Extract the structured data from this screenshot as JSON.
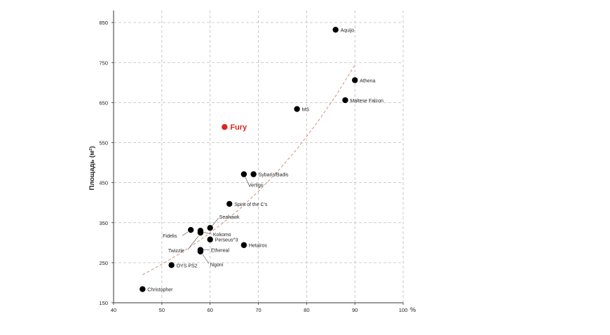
{
  "chart_data": {
    "type": "scatter",
    "title": "",
    "xlabel": "",
    "x_unit": "%",
    "ylabel": "Площадь (м²)",
    "xlim": [
      40,
      100
    ],
    "ylim": [
      150,
      880
    ],
    "x_ticks": [
      40,
      50,
      60,
      70,
      80,
      90,
      100
    ],
    "y_ticks": [
      150,
      250,
      350,
      450,
      550,
      650,
      750,
      850
    ],
    "grid": true,
    "colors": {
      "point": "#000000",
      "highlight": "#d8281e",
      "trend": "#d98c82",
      "grid": "#bcbcbc"
    },
    "points": [
      {
        "name": "Aquijo",
        "x": 86,
        "y": 832,
        "highlight": false
      },
      {
        "name": "Athena",
        "x": 90,
        "y": 706,
        "highlight": false
      },
      {
        "name": "Maltese Falcon",
        "x": 88,
        "y": 656,
        "highlight": false
      },
      {
        "name": "MS",
        "x": 78,
        "y": 634,
        "highlight": false
      },
      {
        "name": "Fury",
        "x": 63,
        "y": 589,
        "highlight": true
      },
      {
        "name": "Sybaris/Badis",
        "x": 69,
        "y": 471,
        "highlight": false
      },
      {
        "name": "Vertigo",
        "x": 67,
        "y": 471,
        "highlight": false
      },
      {
        "name": "Spirit of the C's",
        "x": 64,
        "y": 397,
        "highlight": false
      },
      {
        "name": "Seahawk",
        "x": 60,
        "y": 337,
        "highlight": false
      },
      {
        "name": "Kokomo",
        "x": 58,
        "y": 330,
        "highlight": false
      },
      {
        "name": "Fidelis",
        "x": 56,
        "y": 332,
        "highlight": false
      },
      {
        "name": "Perseus^3",
        "x": 60,
        "y": 308,
        "highlight": false
      },
      {
        "name": "Twizzle",
        "x": 58,
        "y": 325,
        "highlight": false
      },
      {
        "name": "Ethereal",
        "x": 58,
        "y": 282,
        "highlight": false
      },
      {
        "name": "Ngoni",
        "x": 58,
        "y": 278,
        "highlight": false
      },
      {
        "name": "Hetairos",
        "x": 67,
        "y": 294,
        "highlight": false
      },
      {
        "name": "OYS PS2",
        "x": 52,
        "y": 244,
        "highlight": false
      },
      {
        "name": "Christopher",
        "x": 46,
        "y": 184,
        "highlight": false
      }
    ],
    "trendline": {
      "type": "exponential",
      "style": "dashed",
      "x": [
        46,
        50,
        54,
        58,
        62,
        66,
        70,
        74,
        78,
        82,
        86,
        90
      ],
      "y": [
        220,
        246,
        275,
        307,
        343,
        383,
        428,
        478,
        534,
        597,
        666,
        744
      ]
    }
  }
}
